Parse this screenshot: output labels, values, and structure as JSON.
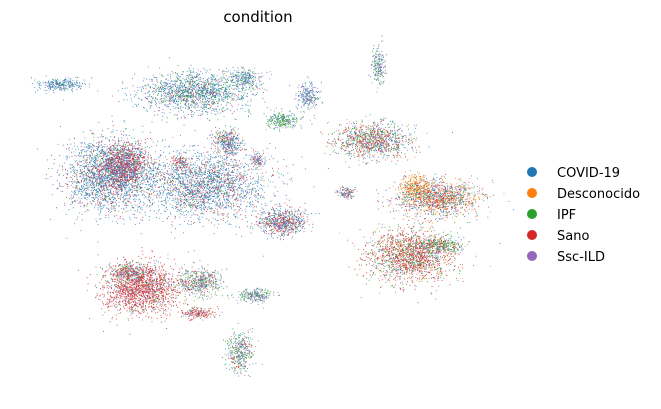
{
  "chart_data": {
    "type": "scatter",
    "title": "condition",
    "xlabel": "",
    "ylabel": "",
    "axes_visible": false,
    "grid": false,
    "legend_placement": "right",
    "point_style": "dense tiny dots (UMAP embedding)",
    "series": [
      {
        "name": "COVID-19",
        "color": "#1f77b4"
      },
      {
        "name": "Desconocido",
        "color": "#ff7f0e"
      },
      {
        "name": "IPF",
        "color": "#2ca02c"
      },
      {
        "name": "Sano",
        "color": "#d62728"
      },
      {
        "name": "Ssc-ILD",
        "color": "#9467bd"
      }
    ]
  }
}
